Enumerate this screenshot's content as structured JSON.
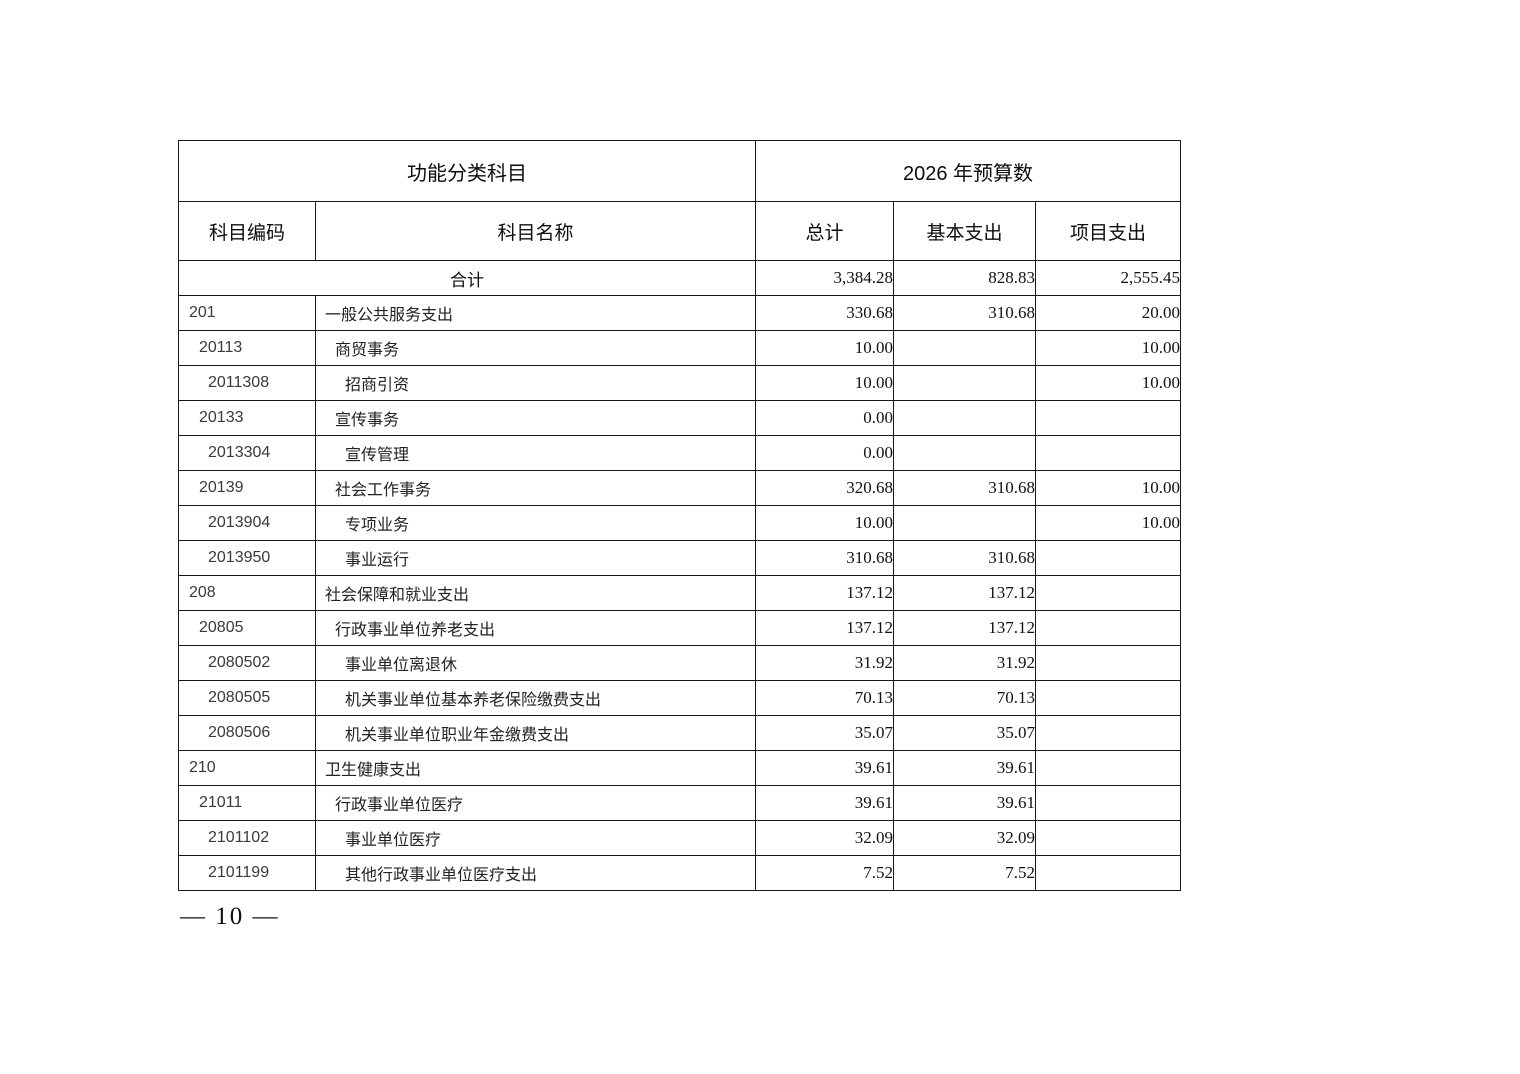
{
  "page": {
    "number_label": "— 10 —"
  },
  "table": {
    "header": {
      "group_left": "功能分类科目",
      "group_right": "2026 年预算数",
      "col_code": "科目编码",
      "col_name": "科目名称",
      "col_total": "总计",
      "col_basic": "基本支出",
      "col_project": "项目支出"
    },
    "total_row": {
      "label": "合计",
      "total": "3,384.28",
      "basic": "828.83",
      "project": "2,555.45"
    },
    "rows": [
      {
        "code": "201",
        "name": "一般公共服务支出",
        "level": 0,
        "total": "330.68",
        "basic": "310.68",
        "project": "20.00"
      },
      {
        "code": "20113",
        "name": "商贸事务",
        "level": 1,
        "total": "10.00",
        "basic": "",
        "project": "10.00"
      },
      {
        "code": "2011308",
        "name": "招商引资",
        "level": 2,
        "total": "10.00",
        "basic": "",
        "project": "10.00"
      },
      {
        "code": "20133",
        "name": "宣传事务",
        "level": 1,
        "total": "0.00",
        "basic": "",
        "project": ""
      },
      {
        "code": "2013304",
        "name": "宣传管理",
        "level": 2,
        "total": "0.00",
        "basic": "",
        "project": ""
      },
      {
        "code": "20139",
        "name": "社会工作事务",
        "level": 1,
        "total": "320.68",
        "basic": "310.68",
        "project": "10.00"
      },
      {
        "code": "2013904",
        "name": "专项业务",
        "level": 2,
        "total": "10.00",
        "basic": "",
        "project": "10.00"
      },
      {
        "code": "2013950",
        "name": "事业运行",
        "level": 2,
        "total": "310.68",
        "basic": "310.68",
        "project": ""
      },
      {
        "code": "208",
        "name": "社会保障和就业支出",
        "level": 0,
        "total": "137.12",
        "basic": "137.12",
        "project": ""
      },
      {
        "code": "20805",
        "name": "行政事业单位养老支出",
        "level": 1,
        "total": "137.12",
        "basic": "137.12",
        "project": ""
      },
      {
        "code": "2080502",
        "name": "事业单位离退休",
        "level": 2,
        "total": "31.92",
        "basic": "31.92",
        "project": ""
      },
      {
        "code": "2080505",
        "name": "机关事业单位基本养老保险缴费支出",
        "level": 2,
        "total": "70.13",
        "basic": "70.13",
        "project": ""
      },
      {
        "code": "2080506",
        "name": "机关事业单位职业年金缴费支出",
        "level": 2,
        "total": "35.07",
        "basic": "35.07",
        "project": ""
      },
      {
        "code": "210",
        "name": "卫生健康支出",
        "level": 0,
        "total": "39.61",
        "basic": "39.61",
        "project": ""
      },
      {
        "code": "21011",
        "name": "行政事业单位医疗",
        "level": 1,
        "total": "39.61",
        "basic": "39.61",
        "project": ""
      },
      {
        "code": "2101102",
        "name": "事业单位医疗",
        "level": 2,
        "total": "32.09",
        "basic": "32.09",
        "project": ""
      },
      {
        "code": "2101199",
        "name": "其他行政事业单位医疗支出",
        "level": 2,
        "total": "7.52",
        "basic": "7.52",
        "project": ""
      }
    ]
  }
}
